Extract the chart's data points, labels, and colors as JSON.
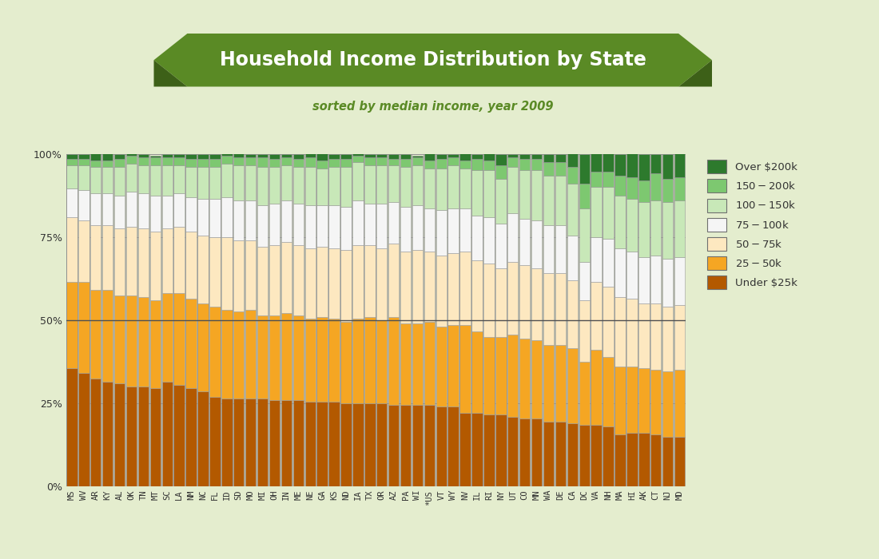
{
  "states": [
    "MS",
    "WV",
    "AR",
    "KY",
    "AL",
    "OK",
    "TN",
    "MT",
    "SC",
    "LA",
    "NM",
    "NC",
    "FL",
    "ID",
    "SD",
    "MO",
    "MI",
    "OH",
    "IN",
    "ME",
    "NE",
    "GA",
    "KS",
    "ND",
    "IA",
    "TX",
    "OR",
    "AZ",
    "PA",
    "WI",
    "*US",
    "VT",
    "WY",
    "NV",
    "IL",
    "RI",
    "NY",
    "UT",
    "CO",
    "MN",
    "WA",
    "DE",
    "CA",
    "DC",
    "VA",
    "NH",
    "MA",
    "HI",
    "AK",
    "CT",
    "NJ",
    "MD"
  ],
  "under25": [
    35.5,
    34.0,
    32.5,
    31.5,
    31.0,
    30.0,
    30.0,
    29.5,
    31.5,
    30.5,
    29.5,
    28.5,
    27.0,
    26.5,
    26.5,
    26.5,
    26.5,
    26.0,
    26.0,
    26.0,
    25.5,
    25.5,
    25.5,
    25.0,
    25.0,
    25.0,
    25.0,
    24.5,
    24.5,
    24.5,
    24.5,
    24.0,
    24.0,
    22.0,
    22.0,
    21.5,
    21.5,
    21.0,
    20.5,
    20.5,
    19.5,
    19.5,
    19.0,
    18.5,
    18.5,
    18.0,
    15.5,
    16.0,
    16.0,
    15.5,
    15.0,
    15.0
  ],
  "25to50": [
    26.0,
    27.5,
    26.5,
    27.5,
    26.5,
    27.5,
    27.0,
    26.5,
    26.5,
    27.5,
    27.0,
    26.5,
    27.0,
    26.5,
    26.0,
    26.5,
    25.0,
    25.5,
    26.0,
    25.5,
    25.0,
    25.5,
    25.0,
    24.5,
    25.5,
    26.0,
    25.0,
    26.5,
    24.5,
    24.5,
    25.0,
    24.0,
    24.5,
    26.5,
    24.5,
    23.5,
    23.5,
    24.5,
    24.0,
    23.5,
    23.0,
    23.0,
    22.5,
    19.0,
    22.5,
    21.0,
    20.5,
    20.0,
    19.5,
    19.5,
    19.5,
    20.0
  ],
  "50to75": [
    19.5,
    18.5,
    19.5,
    19.5,
    20.0,
    20.5,
    20.5,
    20.5,
    19.5,
    20.0,
    20.0,
    20.5,
    21.0,
    22.0,
    21.5,
    21.0,
    20.5,
    21.0,
    21.5,
    21.0,
    21.0,
    21.0,
    21.0,
    21.5,
    22.0,
    21.5,
    21.5,
    22.0,
    21.5,
    22.0,
    21.0,
    21.5,
    21.5,
    22.0,
    21.5,
    22.0,
    20.5,
    22.0,
    22.0,
    21.5,
    21.5,
    21.5,
    20.5,
    18.5,
    20.5,
    21.0,
    21.0,
    20.5,
    19.5,
    20.0,
    19.5,
    19.5
  ],
  "75to100": [
    8.5,
    9.0,
    9.5,
    9.5,
    10.0,
    10.5,
    10.5,
    11.0,
    10.0,
    10.0,
    10.5,
    11.0,
    11.5,
    12.0,
    12.0,
    12.0,
    12.5,
    12.5,
    12.5,
    12.5,
    13.0,
    12.5,
    13.0,
    13.0,
    13.5,
    12.5,
    13.5,
    12.5,
    13.5,
    13.5,
    13.0,
    13.5,
    13.5,
    13.0,
    13.5,
    14.0,
    13.5,
    14.5,
    14.0,
    14.5,
    14.5,
    14.5,
    13.5,
    11.5,
    13.5,
    14.5,
    14.5,
    14.0,
    14.0,
    14.5,
    14.5,
    14.5
  ],
  "100to150": [
    7.0,
    7.5,
    8.0,
    8.0,
    8.5,
    8.5,
    8.5,
    9.0,
    9.0,
    8.5,
    9.0,
    9.5,
    9.5,
    10.0,
    10.5,
    10.5,
    11.5,
    11.0,
    10.5,
    11.0,
    11.5,
    11.0,
    11.5,
    12.0,
    11.5,
    11.5,
    11.5,
    11.0,
    12.0,
    12.0,
    12.0,
    12.5,
    13.0,
    12.0,
    13.5,
    14.0,
    13.5,
    14.0,
    14.5,
    15.0,
    15.0,
    15.0,
    15.5,
    16.0,
    15.0,
    15.5,
    16.0,
    16.0,
    16.5,
    16.5,
    17.0,
    17.0
  ],
  "150to200": [
    2.0,
    2.0,
    2.0,
    2.0,
    2.5,
    2.5,
    2.5,
    2.5,
    2.5,
    2.5,
    2.5,
    2.5,
    2.5,
    2.5,
    2.5,
    2.5,
    3.0,
    2.5,
    2.5,
    2.5,
    3.0,
    2.5,
    2.5,
    2.5,
    2.0,
    2.5,
    2.5,
    2.0,
    2.5,
    2.5,
    2.5,
    3.0,
    2.5,
    2.5,
    3.5,
    3.0,
    4.0,
    3.0,
    3.5,
    3.5,
    4.0,
    4.0,
    5.0,
    7.5,
    4.5,
    4.5,
    6.0,
    6.5,
    6.5,
    8.0,
    7.0,
    7.0
  ],
  "over200": [
    1.5,
    1.5,
    2.0,
    2.0,
    1.5,
    0.5,
    1.0,
    0.5,
    1.0,
    1.0,
    1.5,
    1.5,
    1.5,
    0.5,
    2.0,
    1.0,
    1.0,
    1.5,
    1.0,
    1.5,
    2.0,
    2.0,
    1.5,
    1.5,
    0.5,
    1.0,
    1.0,
    1.5,
    1.5,
    0.5,
    2.0,
    1.5,
    1.0,
    2.0,
    1.5,
    2.0,
    3.5,
    1.0,
    1.5,
    1.5,
    2.5,
    2.5,
    4.0,
    9.0,
    5.5,
    5.5,
    6.5,
    7.0,
    8.0,
    6.0,
    7.5,
    7.5
  ],
  "colors": {
    "under25": "#b35900",
    "25to50": "#f5a623",
    "50to75": "#fde8c0",
    "75to100": "#f5f5f5",
    "100to150": "#c8e8b8",
    "150to200": "#7dc870",
    "over200": "#2d7a2d"
  },
  "background": "#e4edce",
  "title": "Household Income Distribution by State",
  "subtitle": "sorted by median income, year 2009",
  "title_banner_color": "#5a8a25",
  "title_text_color": "#ffffff",
  "subtitle_color": "#5a8a25",
  "legend_labels": [
    "Over $200k",
    "$150 - $200k",
    "$100 - $150k",
    "$75 - $100k",
    "$50 - $75k",
    "$25 - $50k",
    "Under $25k"
  ],
  "yticks": [
    0,
    25,
    50,
    75,
    100
  ],
  "grid_color": "#909090",
  "bar_edge_color": "#999999"
}
